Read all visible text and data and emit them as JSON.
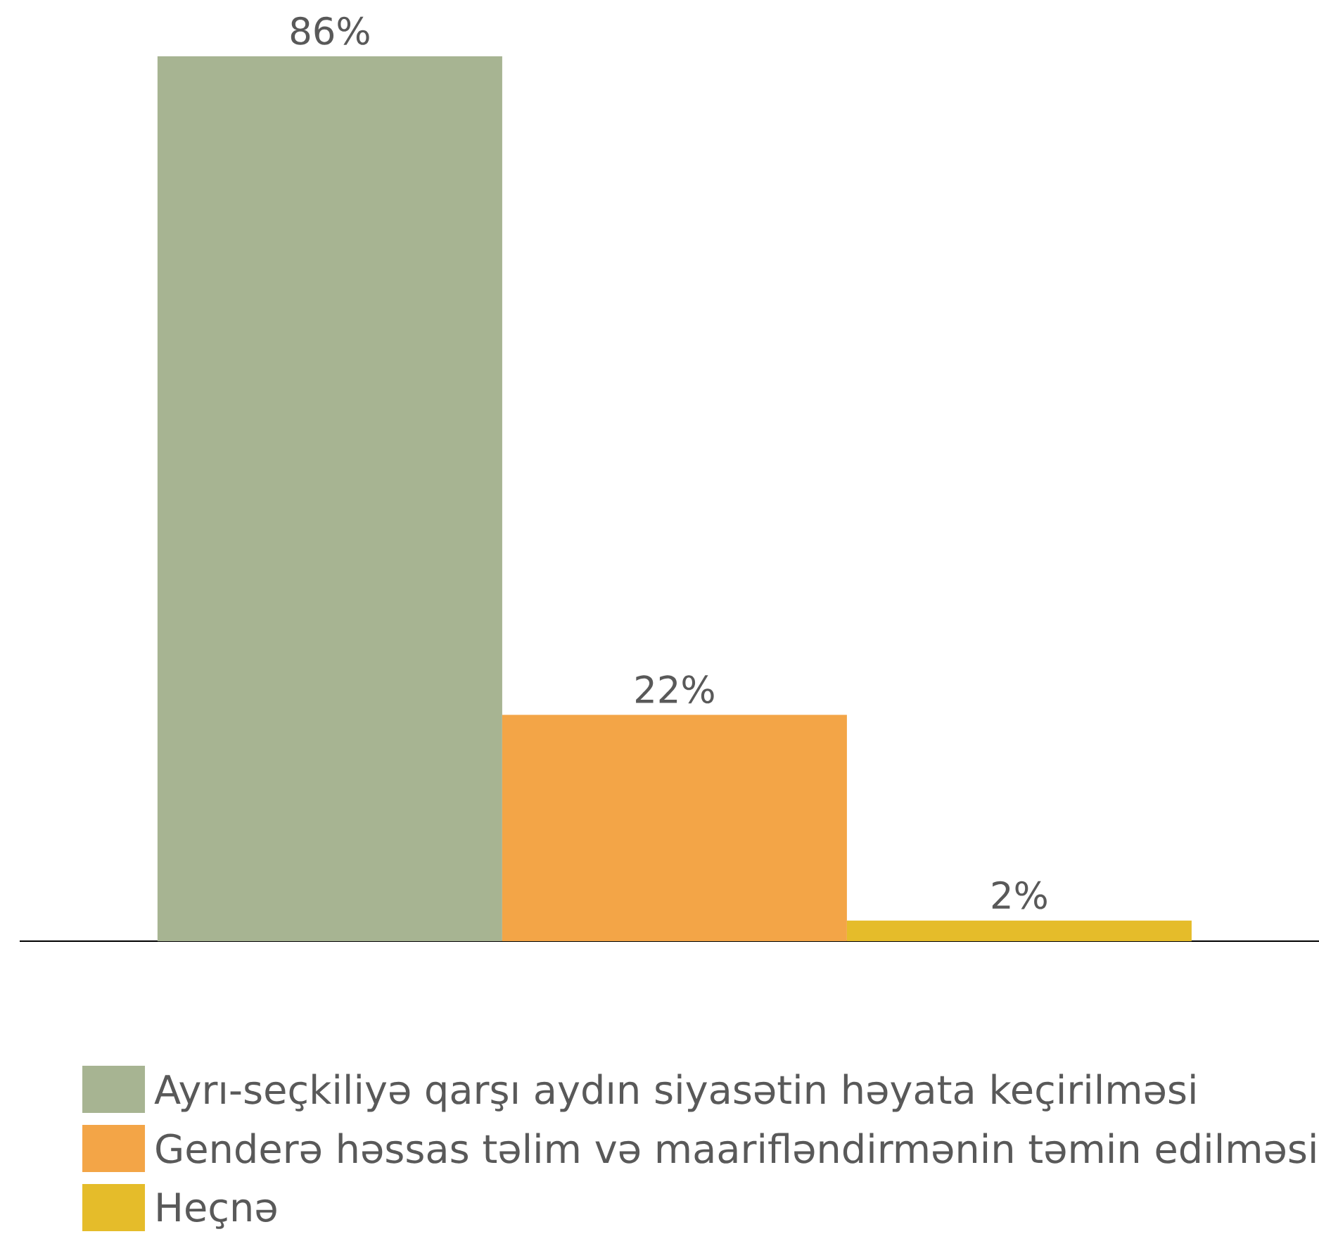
{
  "chart_data": {
    "type": "bar",
    "categories": [
      null
    ],
    "series": [
      {
        "name": "Ayrı-seçkiliyə qarşı aydın siyasətin həyata keçirilməsi",
        "color": "#a7b492",
        "values": [
          86
        ],
        "value_labels": [
          "86%"
        ]
      },
      {
        "name": "Genderə həssas təlim və maarifləndirmənin təmin edilməsi",
        "color": "#f3a547",
        "values": [
          22
        ],
        "value_labels": [
          "22%"
        ]
      },
      {
        "name": "Heçnə",
        "color": "#e5bc2a",
        "values": [
          2
        ],
        "value_labels": [
          "2%"
        ]
      }
    ],
    "tick_labels": false,
    "legend": "bottom"
  }
}
